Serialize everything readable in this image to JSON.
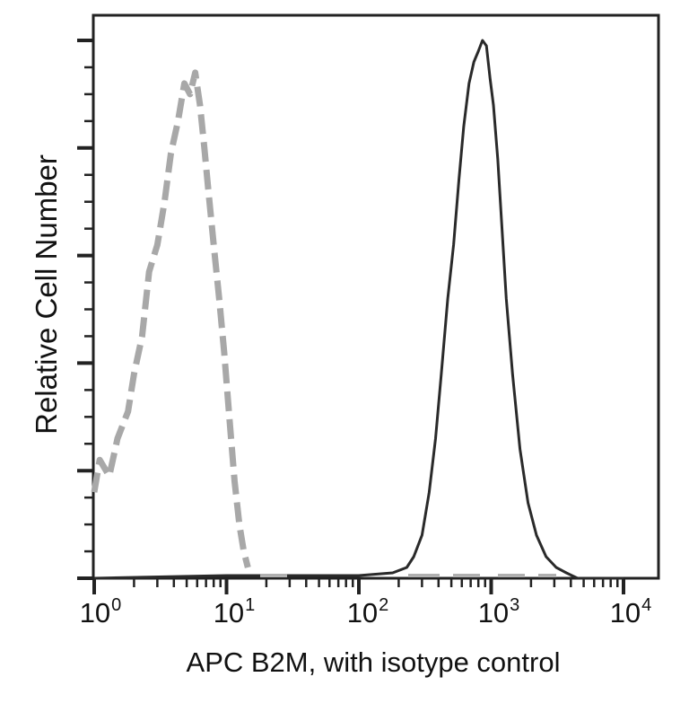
{
  "chart_data": {
    "type": "line",
    "title": "",
    "xlabel": "APC B2M, with isotype control",
    "ylabel": "Relative Cell Number",
    "xscale": "log",
    "xlim": [
      1,
      10000
    ],
    "ylim": [
      0,
      100
    ],
    "x_tick_labels": [
      {
        "base": "10",
        "exp": "0"
      },
      {
        "base": "10",
        "exp": "1"
      },
      {
        "base": "10",
        "exp": "2"
      },
      {
        "base": "10",
        "exp": "3"
      },
      {
        "base": "10",
        "exp": "4"
      }
    ],
    "y_tick_labels": [],
    "grid": false,
    "legend": null,
    "series": [
      {
        "name": "Isotype control",
        "style": "dashed",
        "color": "#a8a8a8",
        "x": [
          1.0,
          1.1,
          1.3,
          1.5,
          1.8,
          2.0,
          2.3,
          2.6,
          3.0,
          3.4,
          3.8,
          4.3,
          4.8,
          5.3,
          5.8,
          6.3,
          6.8,
          7.3,
          8.0,
          8.8,
          9.6,
          10.5,
          11.5,
          12.5,
          13.5,
          14.5
        ],
        "values": [
          16,
          22,
          19,
          26,
          31,
          38,
          45,
          57,
          62,
          70,
          79,
          85,
          92,
          90,
          94,
          88,
          80,
          72,
          62,
          52,
          42,
          30,
          18,
          10,
          5,
          2
        ]
      },
      {
        "name": "APC B2M",
        "style": "solid",
        "color": "#2a2a2a",
        "x": [
          1,
          10,
          100,
          180,
          230,
          260,
          300,
          340,
          380,
          420,
          470,
          520,
          570,
          620,
          680,
          740,
          800,
          860,
          920,
          980,
          1040,
          1120,
          1200,
          1300,
          1450,
          1650,
          1900,
          2200,
          2600,
          3100,
          3700,
          4500,
          6000,
          10000
        ],
        "values": [
          0,
          0.5,
          0.5,
          1,
          2,
          4,
          8,
          16,
          26,
          38,
          52,
          62,
          74,
          84,
          92,
          96,
          98,
          100,
          99,
          93,
          88,
          78,
          66,
          52,
          38,
          24,
          14,
          8,
          4,
          2,
          1,
          0,
          0,
          0
        ]
      }
    ]
  },
  "axes": {
    "x_tick_0_base": "10",
    "x_tick_0_exp": "0",
    "x_tick_1_base": "10",
    "x_tick_1_exp": "1",
    "x_tick_2_base": "10",
    "x_tick_2_exp": "2",
    "x_tick_3_base": "10",
    "x_tick_3_exp": "3",
    "x_tick_4_base": "10",
    "x_tick_4_exp": "4"
  },
  "labels": {
    "x": "APC B2M, with isotype control",
    "y": "Relative Cell Number"
  },
  "colors": {
    "isotype": "#a8a8a8",
    "sample": "#2a2a2a",
    "axis": "#111111"
  }
}
